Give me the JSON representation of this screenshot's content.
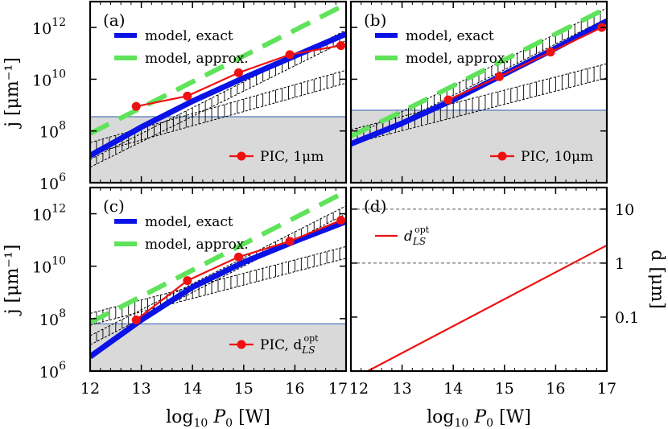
{
  "colors": {
    "exact": "#0a12e6",
    "approx": "#5fe35a",
    "pic": "#ee1111",
    "shade": "#d9d9d9",
    "threshold_line": "#5577bb"
  },
  "axes": {
    "x_label": "log",
    "x_label_sub": "10",
    "x_label_var": "P",
    "x_label_var_sub": "0",
    "x_label_unit": "[W]",
    "y_label_left": "j [μm⁻¹]",
    "y_label_right": "d [μm]",
    "x_ticks": [
      "12",
      "13",
      "14",
      "15",
      "16",
      "17"
    ],
    "y_ticks_left": [
      {
        "base": "10",
        "exp": "6",
        "value": 6
      },
      {
        "base": "10",
        "exp": "8",
        "value": 8
      },
      {
        "base": "10",
        "exp": "10",
        "value": 10
      },
      {
        "base": "10",
        "exp": "12",
        "value": 12
      }
    ],
    "y_ticks_right": [
      {
        "label": "0.1",
        "value": -1
      },
      {
        "label": "1",
        "value": 0
      },
      {
        "label": "10",
        "value": 1
      }
    ]
  },
  "legend": {
    "exact": "model, exact",
    "approx": "model, approx."
  },
  "chart_data": [
    {
      "panel": "(a)",
      "type": "line",
      "xlim": [
        12,
        17
      ],
      "ylim_log10": [
        6,
        13
      ],
      "y_scale": "log",
      "pic_label": "PIC, 1μm",
      "shade_top_log10": 8.55,
      "series": [
        {
          "name": "model, exact",
          "x": [
            12,
            13,
            14,
            15,
            16,
            17
          ],
          "y_log10": [
            7.05,
            8.15,
            9.15,
            10.05,
            10.9,
            11.75
          ]
        },
        {
          "name": "model, approx.",
          "x": [
            12,
            13,
            14,
            15,
            16,
            17
          ],
          "y_log10": [
            7.9,
            8.9,
            9.9,
            10.9,
            11.9,
            12.9
          ]
        },
        {
          "name": "PIC, 1μm",
          "x": [
            12.9,
            13.9,
            14.9,
            15.9,
            16.9
          ],
          "y_log10": [
            8.95,
            9.35,
            10.25,
            10.95,
            11.3
          ]
        }
      ],
      "hatch_bands": [
        {
          "x": [
            12,
            17
          ],
          "upper_log10": [
            7.55,
            10.35
          ],
          "lower_log10": [
            7.1,
            9.85
          ]
        },
        {
          "x": [
            12,
            17
          ],
          "upper_log10": [
            6.9,
            11.9
          ],
          "lower_log10": [
            6.6,
            11.5
          ]
        }
      ]
    },
    {
      "panel": "(b)",
      "type": "line",
      "xlim": [
        12,
        17
      ],
      "ylim_log10": [
        6,
        13
      ],
      "y_scale": "log",
      "pic_label": "PIC, 10μm",
      "shade_top_log10": 8.8,
      "series": [
        {
          "name": "model, exact",
          "x": [
            12,
            13,
            14,
            15,
            16,
            17
          ],
          "y_log10": [
            7.5,
            8.3,
            9.2,
            10.2,
            11.2,
            12.25
          ]
        },
        {
          "name": "model, approx.",
          "x": [
            12,
            13,
            14,
            15,
            16,
            17
          ],
          "y_log10": [
            7.8,
            8.75,
            9.75,
            10.75,
            11.75,
            12.75
          ]
        },
        {
          "name": "PIC, 10μm",
          "x": [
            13.9,
            14.9,
            15.9,
            16.9
          ],
          "y_log10": [
            9.2,
            10.1,
            11.05,
            12.0
          ]
        }
      ],
      "hatch_bands": [
        {
          "x": [
            12,
            17
          ],
          "upper_log10": [
            8.05,
            10.6
          ],
          "lower_log10": [
            7.5,
            10.05
          ]
        },
        {
          "x": [
            12,
            17
          ],
          "upper_log10": [
            7.75,
            12.75
          ],
          "lower_log10": [
            7.4,
            12.35
          ]
        }
      ]
    },
    {
      "panel": "(c)",
      "type": "line",
      "xlim": [
        12,
        17
      ],
      "ylim_log10": [
        6,
        13
      ],
      "y_scale": "log",
      "pic_label": "PIC, d",
      "pic_label_sub": "LS",
      "pic_label_sup": "opt",
      "shade_top_log10": 7.8,
      "series": [
        {
          "name": "model, exact",
          "x": [
            12,
            13,
            14,
            15,
            16,
            17
          ],
          "y_log10": [
            6.55,
            7.95,
            9.2,
            10.15,
            10.95,
            11.7
          ]
        },
        {
          "name": "model, approx.",
          "x": [
            12,
            13,
            14,
            15,
            16,
            17
          ],
          "y_log10": [
            7.85,
            8.85,
            9.85,
            10.85,
            11.85,
            12.85
          ]
        },
        {
          "name": "PIC, d LS opt",
          "x": [
            12.9,
            13.9,
            14.9,
            15.9,
            16.9
          ],
          "y_log10": [
            7.95,
            9.45,
            10.35,
            10.95,
            11.75
          ]
        }
      ],
      "hatch_bands": [
        {
          "x": [
            12,
            17
          ],
          "upper_log10": [
            8.2,
            10.75
          ],
          "lower_log10": [
            7.75,
            10.3
          ]
        },
        {
          "x": [
            12,
            17
          ],
          "upper_log10": [
            7.35,
            12.3
          ],
          "lower_log10": [
            7.0,
            12.0
          ]
        }
      ]
    },
    {
      "panel": "(d)",
      "type": "line",
      "xlim": [
        12,
        17
      ],
      "ylim_log10": [
        -2,
        1.4
      ],
      "y_scale": "log",
      "series": [
        {
          "name": "d",
          "name_sub": "LS",
          "name_sup": "opt",
          "x": [
            12.33,
            17
          ],
          "y_log10": [
            -2,
            0.33
          ]
        }
      ],
      "reference_lines_log10": [
        1,
        0
      ]
    }
  ]
}
